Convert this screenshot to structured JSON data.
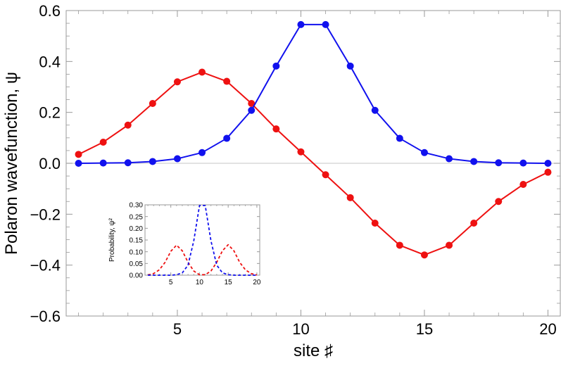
{
  "chart_data": [
    {
      "type": "line",
      "xlabel": "site ♯",
      "ylabel": "Polaron wavefunction, ψ",
      "xlim": [
        0.5,
        20.5
      ],
      "ylim": [
        -0.6,
        0.6
      ],
      "xticks": [
        5,
        10,
        15,
        20
      ],
      "yticks": [
        -0.6,
        -0.4,
        -0.2,
        0.0,
        0.2,
        0.4,
        0.6
      ],
      "ytick_labels": [
        "−0.6",
        "−0.4",
        "−0.2",
        "0.0",
        "0.2",
        "0.4",
        "0.6"
      ],
      "grid": false,
      "x": [
        1,
        2,
        3,
        4,
        5,
        6,
        7,
        8,
        9,
        10,
        11,
        12,
        13,
        14,
        15,
        16,
        17,
        18,
        19,
        20
      ],
      "series": [
        {
          "color": "#ee1111",
          "marker": "circle",
          "values": [
            0.035,
            0.083,
            0.15,
            0.235,
            0.32,
            0.358,
            0.322,
            0.235,
            0.135,
            0.045,
            -0.045,
            -0.135,
            -0.235,
            -0.322,
            -0.36,
            -0.322,
            -0.235,
            -0.15,
            -0.083,
            -0.035
          ]
        },
        {
          "color": "#1111ee",
          "marker": "circle",
          "values": [
            0.0,
            0.001,
            0.002,
            0.007,
            0.018,
            0.042,
            0.098,
            0.208,
            0.382,
            0.545,
            0.545,
            0.382,
            0.208,
            0.098,
            0.042,
            0.018,
            0.007,
            0.002,
            0.001,
            0.0
          ]
        }
      ]
    },
    {
      "type": "line",
      "xlabel": "",
      "ylabel": "Probability, ψ²",
      "xlim": [
        0.5,
        20.5
      ],
      "ylim": [
        0,
        0.3
      ],
      "xticks": [
        5,
        10,
        15,
        20
      ],
      "yticks": [
        0.0,
        0.05,
        0.1,
        0.15,
        0.2,
        0.25,
        0.3
      ],
      "ytick_labels": [
        "0.00",
        "0.05",
        "0.10",
        "0.15",
        "0.20",
        "0.25",
        "0.30"
      ],
      "grid": false,
      "x": [
        1,
        2,
        3,
        4,
        5,
        6,
        7,
        8,
        9,
        10,
        11,
        12,
        13,
        14,
        15,
        16,
        17,
        18,
        19,
        20
      ],
      "series": [
        {
          "color": "#ee1111",
          "style": "dashed",
          "values": [
            0.001,
            0.007,
            0.023,
            0.055,
            0.102,
            0.128,
            0.104,
            0.055,
            0.018,
            0.002,
            0.002,
            0.018,
            0.055,
            0.104,
            0.13,
            0.104,
            0.055,
            0.023,
            0.007,
            0.001
          ]
        },
        {
          "color": "#1111ee",
          "style": "dashed",
          "values": [
            0.0,
            0.0,
            0.0,
            0.0,
            0.0,
            0.002,
            0.01,
            0.043,
            0.146,
            0.297,
            0.297,
            0.146,
            0.043,
            0.01,
            0.002,
            0.0,
            0.0,
            0.0,
            0.0,
            0.0
          ]
        }
      ]
    }
  ]
}
